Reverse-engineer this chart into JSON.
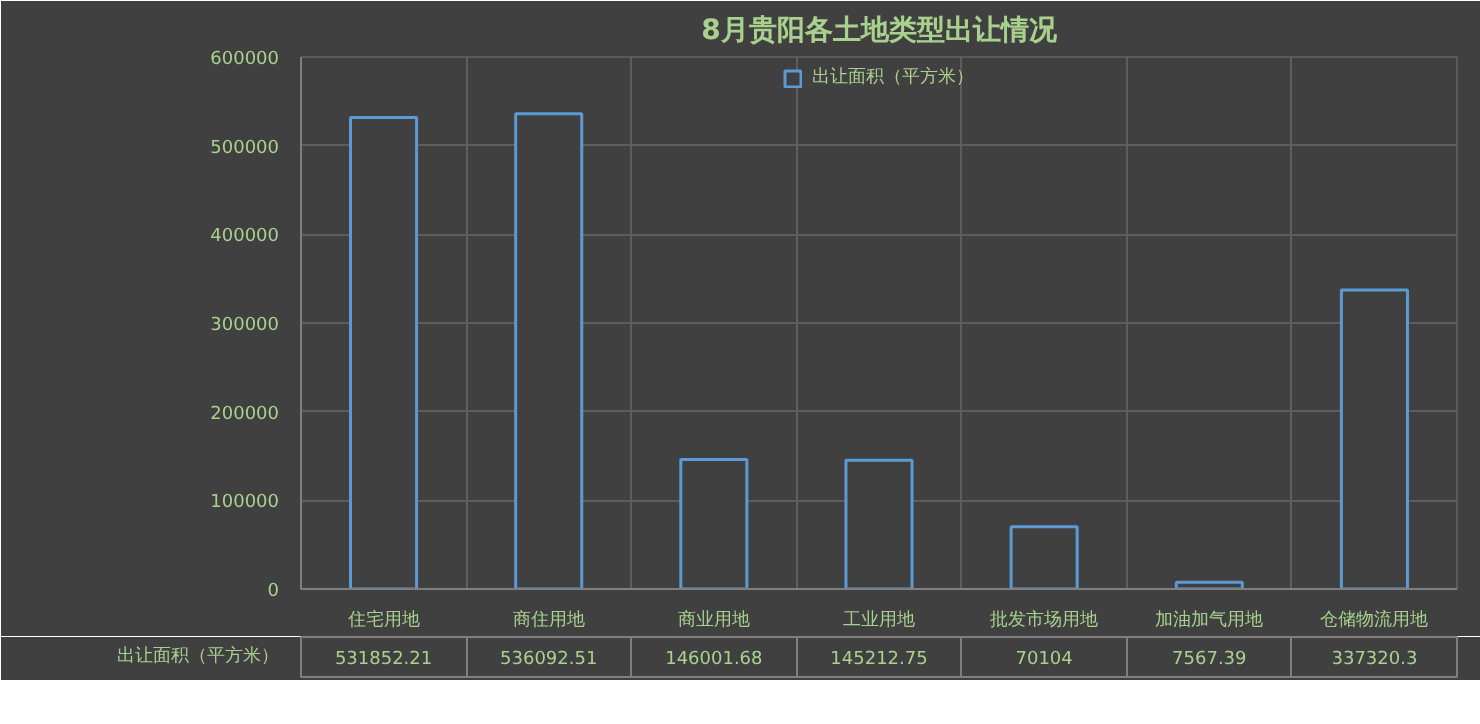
{
  "chart_data": {
    "type": "bar",
    "title": "8月贵阳各土地类型出让情况",
    "categories": [
      "住宅用地",
      "商住用地",
      "商业用地",
      "工业用地",
      "批发市场用地",
      "加油加气用地",
      "仓储物流用地"
    ],
    "series": [
      {
        "name": "出让面积（平方米）",
        "color": "#5b9bd5",
        "values": [
          531852.21,
          536092.51,
          146001.68,
          145212.75,
          70104,
          7567.39,
          337320.3
        ]
      }
    ],
    "ylim": [
      0,
      600000
    ],
    "yticks": [
      0,
      100000,
      200000,
      300000,
      400000,
      500000,
      600000
    ],
    "grid": true,
    "legend": "top",
    "data_labels": true
  }
}
